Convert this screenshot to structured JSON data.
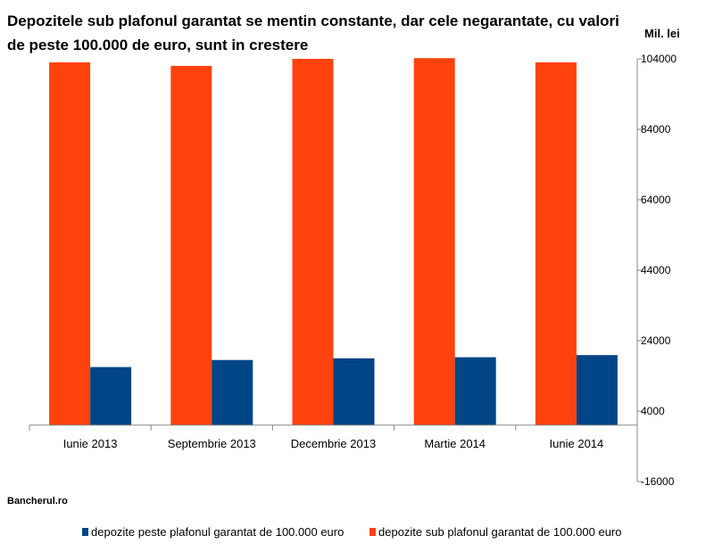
{
  "title": "Depozitele sub plafonul garantat se mentin constante, dar cele negarantate, cu valori de peste 100.000 de euro, sunt in crestere",
  "unit_label": "Mil. lei",
  "source": "Bancherul.ro",
  "chart_data": {
    "type": "bar",
    "title": "Depozitele sub plafonul garantat se mentin constante, dar cele negarantate, cu valori de peste 100.000 de euro, sunt in crestere",
    "ylabel": "Mil. lei",
    "categories": [
      "Iunie 2013",
      "Septembrie 2013",
      "Decembrie 2013",
      "Martie 2014",
      "Iunie 2014"
    ],
    "series": [
      {
        "name": "depozite sub plafonul garantat de 100.000 euro",
        "color": "#FF420E",
        "values": [
          103000,
          102000,
          104000,
          104200,
          103000
        ]
      },
      {
        "name": "depozite peste plafonul garantat de 100.000 euro",
        "color": "#004586",
        "values": [
          16500,
          18500,
          19000,
          19300,
          19900
        ]
      }
    ],
    "legend_order": [
      1,
      0
    ],
    "ylim": [
      -16000,
      104000
    ],
    "yticks": [
      104000,
      84000,
      64000,
      44000,
      24000,
      4000,
      -16000
    ],
    "baseline": 0,
    "grid": false,
    "y_axis_position": "right",
    "legend": "bottom"
  }
}
